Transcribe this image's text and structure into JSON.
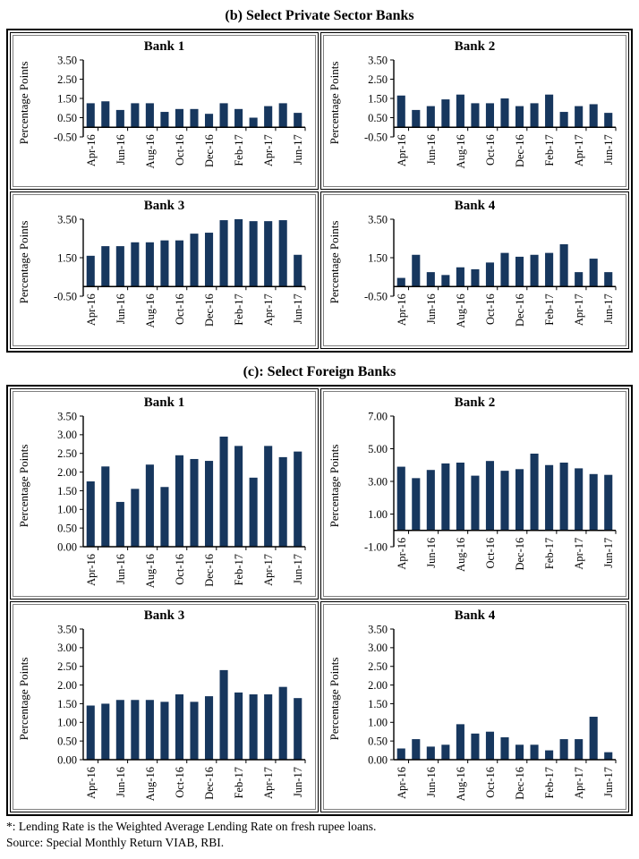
{
  "page": {
    "footnote1": "*: Lending Rate is the Weighted Average Lending Rate on fresh rupee loans.",
    "footnote2": "Source: Special Monthly Return VIAB, RBI."
  },
  "panels": [
    {
      "label": "(b) Select Private Sector Banks"
    },
    {
      "label": "(c): Select Foreign Banks"
    }
  ],
  "colors": {
    "bar": "#17375E",
    "axis": "#000000"
  },
  "chart_common": {
    "months": [
      "Apr-16",
      "May-16",
      "Jun-16",
      "Jul-16",
      "Aug-16",
      "Sep-16",
      "Oct-16",
      "Nov-16",
      "Dec-16",
      "Jan-17",
      "Feb-17",
      "Mar-17",
      "Apr-17",
      "May-17",
      "Jun-17"
    ],
    "x_tick_labels": [
      "Apr-16",
      "Jun-16",
      "Aug-16",
      "Oct-16",
      "Dec-16",
      "Feb-17",
      "Apr-17",
      "Jun-17"
    ]
  },
  "chart_data": [
    {
      "type": "bar",
      "panel": "b",
      "title": "Bank 1",
      "ylabel": "Percentage Points",
      "ylim": [
        -0.5,
        3.5
      ],
      "yticks": [
        "3.50",
        "2.50",
        "1.50",
        "0.50",
        "-0.50"
      ],
      "values": [
        1.25,
        1.35,
        0.9,
        1.25,
        1.25,
        0.8,
        0.95,
        0.95,
        0.7,
        1.25,
        0.95,
        0.5,
        1.1,
        1.25,
        0.75
      ]
    },
    {
      "type": "bar",
      "panel": "b",
      "title": "Bank 2",
      "ylabel": "Percentage Points",
      "ylim": [
        -0.5,
        3.5
      ],
      "yticks": [
        "3.50",
        "2.50",
        "1.50",
        "0.50",
        "-0.50"
      ],
      "values": [
        1.65,
        0.9,
        1.1,
        1.45,
        1.7,
        1.25,
        1.25,
        1.5,
        1.1,
        1.25,
        1.7,
        0.8,
        1.1,
        1.2,
        0.75
      ]
    },
    {
      "type": "bar",
      "panel": "b",
      "title": "Bank 3",
      "ylabel": "Percentage Points",
      "ylim": [
        -0.5,
        3.5
      ],
      "yticks": [
        "3.50",
        "1.50",
        "-0.50"
      ],
      "values": [
        1.6,
        2.1,
        2.1,
        2.3,
        2.3,
        2.4,
        2.4,
        2.75,
        2.8,
        3.45,
        3.5,
        3.4,
        3.4,
        3.45,
        1.65
      ]
    },
    {
      "type": "bar",
      "panel": "b",
      "title": "Bank 4",
      "ylabel": "Percentage Points",
      "ylim": [
        -0.5,
        3.5
      ],
      "yticks": [
        "3.50",
        "1.50",
        "-0.50"
      ],
      "values": [
        0.45,
        1.65,
        0.75,
        0.6,
        1.0,
        0.9,
        1.25,
        1.75,
        1.55,
        1.65,
        1.75,
        2.2,
        0.75,
        1.45,
        0.75
      ]
    },
    {
      "type": "bar",
      "panel": "c",
      "title": "Bank 1",
      "ylabel": "Percentage Points",
      "ylim": [
        0,
        3.5
      ],
      "yticks": [
        "3.50",
        "3.00",
        "2.50",
        "2.00",
        "1.50",
        "1.00",
        "0.50",
        "0.00"
      ],
      "values": [
        1.75,
        2.15,
        1.2,
        1.55,
        2.2,
        1.6,
        2.45,
        2.35,
        2.3,
        2.95,
        2.7,
        1.85,
        2.7,
        2.4,
        2.55
      ]
    },
    {
      "type": "bar",
      "panel": "c",
      "title": "Bank 2",
      "ylabel": "Percentage Points",
      "ylim": [
        -1,
        7
      ],
      "yticks": [
        "7.00",
        "5.00",
        "3.00",
        "1.00",
        "-1.00"
      ],
      "values": [
        3.9,
        3.2,
        3.7,
        4.1,
        4.15,
        3.35,
        4.25,
        3.65,
        3.75,
        4.7,
        4.0,
        4.15,
        3.8,
        3.45,
        3.4
      ]
    },
    {
      "type": "bar",
      "panel": "c",
      "title": "Bank 3",
      "ylabel": "Percentage Points",
      "ylim": [
        0,
        3.5
      ],
      "yticks": [
        "3.50",
        "3.00",
        "2.50",
        "2.00",
        "1.50",
        "1.00",
        "0.50",
        "0.00"
      ],
      "values": [
        1.45,
        1.5,
        1.6,
        1.6,
        1.6,
        1.55,
        1.75,
        1.55,
        1.7,
        2.4,
        1.8,
        1.75,
        1.75,
        1.95,
        1.65
      ]
    },
    {
      "type": "bar",
      "panel": "c",
      "title": "Bank 4",
      "ylabel": "Percentage Points",
      "ylim": [
        0,
        3.5
      ],
      "yticks": [
        "3.50",
        "3.00",
        "2.50",
        "2.00",
        "1.50",
        "1.00",
        "0.50",
        "0.00"
      ],
      "values": [
        0.3,
        0.55,
        0.35,
        0.4,
        0.95,
        0.7,
        0.75,
        0.6,
        0.4,
        0.4,
        0.25,
        0.55,
        0.55,
        1.15,
        0.2
      ]
    }
  ]
}
